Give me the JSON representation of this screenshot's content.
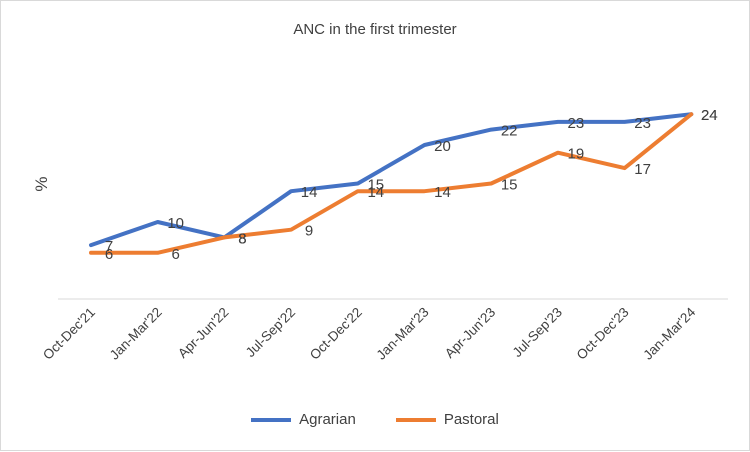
{
  "chart_data": {
    "type": "line",
    "title": "ANC in the first trimester",
    "ylabel": "%",
    "xlabel": "",
    "ylim": [
      0,
      24
    ],
    "grid": false,
    "legend_position": "bottom",
    "categories": [
      "Oct-Dec'21",
      "Jan-Mar'22",
      "Apr-Jun'22",
      "Jul-Sep'22",
      "Oct-Dec'22",
      "Jan-Mar'23",
      "Apr-Jun'23",
      "Jul-Sep'23",
      "Oct-Dec'23",
      "Jan-Mar'24"
    ],
    "series": [
      {
        "name": "Agrarian",
        "color": "#4472C4",
        "values": [
          7,
          10,
          8,
          14,
          15,
          20,
          22,
          23,
          23,
          24
        ]
      },
      {
        "name": "Pastoral",
        "color": "#ED7D31",
        "values": [
          6,
          6,
          8,
          9,
          14,
          14,
          15,
          19,
          17,
          24
        ]
      }
    ]
  }
}
